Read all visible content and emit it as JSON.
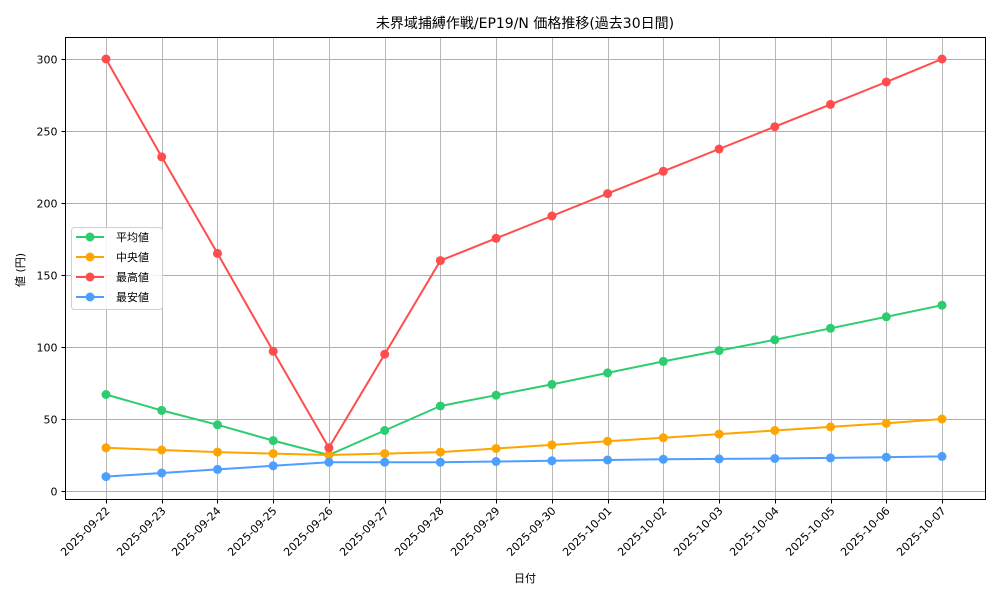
{
  "chart_data": {
    "type": "line",
    "title": "未界域捕縛作戦/EP19/N 価格推移(過去30日間)",
    "xlabel": "日付",
    "ylabel": "値 (円)",
    "ylim": [
      -7,
      315
    ],
    "yticks": [
      0,
      50,
      100,
      150,
      200,
      250,
      300
    ],
    "grid": true,
    "legend_position": "center left",
    "categories": [
      "2025-09-22",
      "2025-09-23",
      "2025-09-24",
      "2025-09-25",
      "2025-09-26",
      "2025-09-27",
      "2025-09-28",
      "2025-09-29",
      "2025-09-30",
      "2025-10-01",
      "2025-10-02",
      "2025-10-03",
      "2025-10-04",
      "2025-10-05",
      "2025-10-06",
      "2025-10-07"
    ],
    "series": [
      {
        "name": "平均値",
        "color": "#2ecc71",
        "values": [
          67,
          56,
          46,
          35,
          25,
          42,
          59,
          66.5,
          74,
          82,
          90,
          97.5,
          105,
          113,
          121,
          129
        ]
      },
      {
        "name": "中央値",
        "color": "#ffa500",
        "values": [
          30,
          28.5,
          27,
          26,
          25,
          26,
          27,
          29.5,
          32,
          34.5,
          37,
          39.5,
          42,
          44.5,
          47,
          50
        ]
      },
      {
        "name": "最高値",
        "color": "#ff4d4d",
        "values": [
          300,
          232,
          165,
          97,
          30,
          95,
          160,
          175.5,
          191,
          206.5,
          222,
          237.5,
          253,
          268.5,
          284,
          300
        ]
      },
      {
        "name": "最安値",
        "color": "#4d9fff",
        "values": [
          10,
          12.5,
          15,
          17.5,
          20,
          20,
          20,
          20.5,
          21,
          21.5,
          22,
          22.3,
          22.6,
          23,
          23.5,
          24
        ]
      }
    ]
  }
}
